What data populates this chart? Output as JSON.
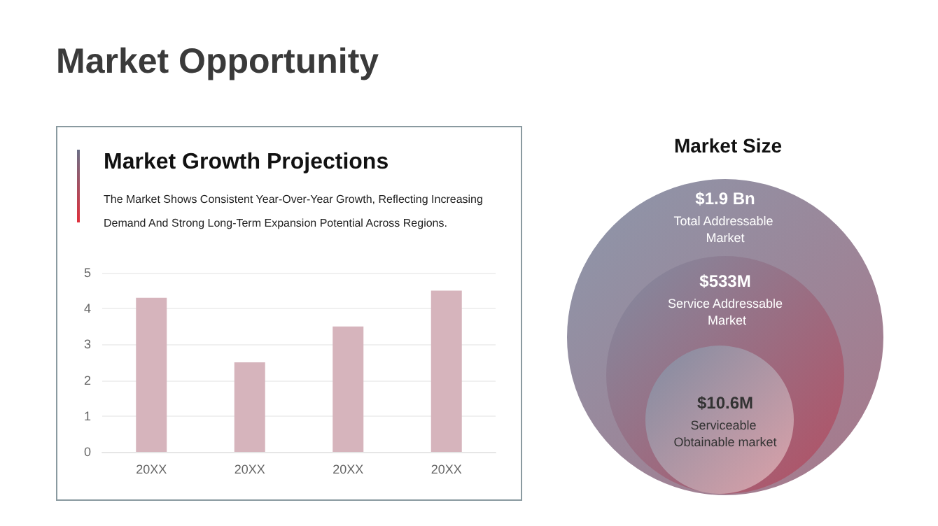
{
  "chart_data": [
    {
      "type": "bar",
      "title": "Market Growth Projections",
      "subtitle": "The Market Shows Consistent Year-Over-Year Growth, Reflecting Increasing Demand And Strong Long-Term Expansion Potential Across Regions.",
      "annotations": [
        "Market Opportunity"
      ],
      "categories": [
        "20XX",
        "20XX",
        "20XX",
        "20XX"
      ],
      "values": [
        4.3,
        2.5,
        3.5,
        4.5
      ],
      "color": "#d6b4bc",
      "ylim": [
        0,
        5
      ],
      "yticks": [
        0,
        1,
        2,
        3,
        4,
        5
      ],
      "grid": "y"
    },
    {
      "type": "other",
      "title": "Market Size",
      "categories": [
        "Total Addressable Market",
        "Service Addressable Market",
        "Serviceable Obtainable market"
      ],
      "value_labels": [
        "$1.9 Bn",
        "$533M",
        "$10.6M"
      ],
      "colors": [
        "#a0687c",
        "#b54a5e",
        "#e2aab0"
      ]
    }
  ]
}
